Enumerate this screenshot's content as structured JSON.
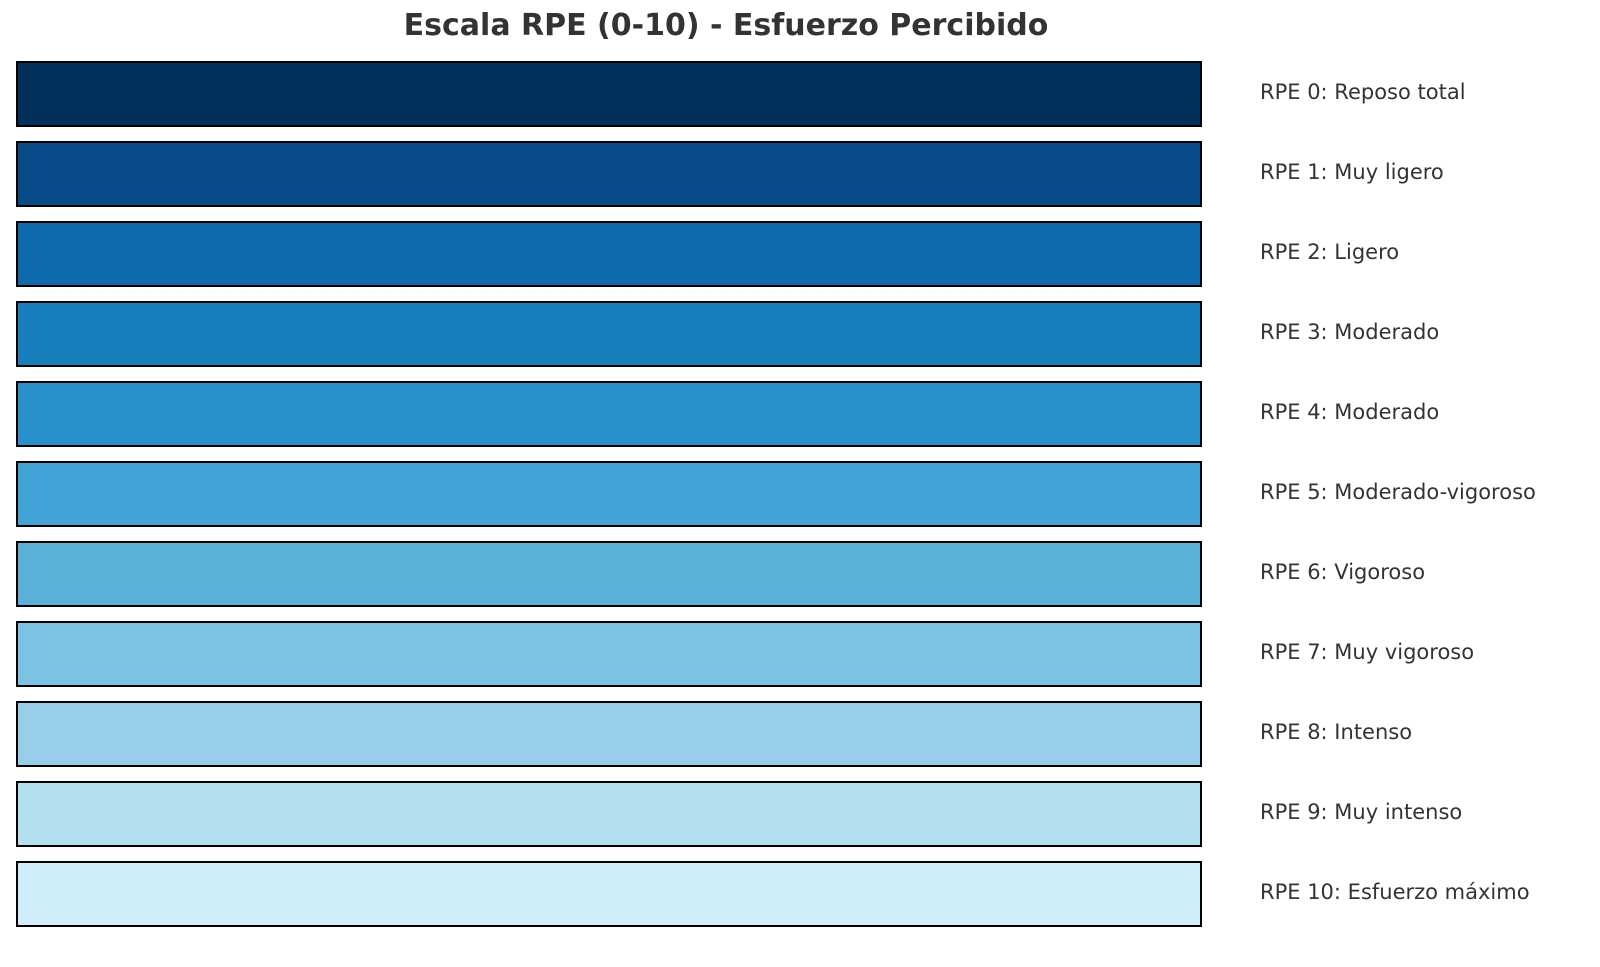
{
  "title": "Escala RPE (0-10) - Esfuerzo Percibido",
  "chart_data": {
    "type": "bar",
    "title": "Escala RPE (0-10) - Esfuerzo Percibido",
    "categories": [
      "RPE 0: Reposo total",
      "RPE 1: Muy ligero",
      "RPE 2: Ligero",
      "RPE 3: Moderado",
      "RPE 4: Moderado",
      "RPE 5: Moderado-vigoroso",
      "RPE 6: Vigoroso",
      "RPE 7: Muy vigoroso",
      "RPE 8: Intenso",
      "RPE 9: Muy intenso",
      "RPE 10: Esfuerzo máximo"
    ],
    "values": [
      1,
      1,
      1,
      1,
      1,
      1,
      1,
      1,
      1,
      1,
      1
    ],
    "colors": [
      "#012f5c",
      "#084b89",
      "#0f6aad",
      "#167fbc",
      "#2891cc",
      "#42a3d6",
      "#5bb0da",
      "#7bc2e3",
      "#97cfeb",
      "#b2e0ef",
      "#d0eefa"
    ],
    "orientation": "horizontal",
    "grid": false,
    "axes_visible": false
  }
}
